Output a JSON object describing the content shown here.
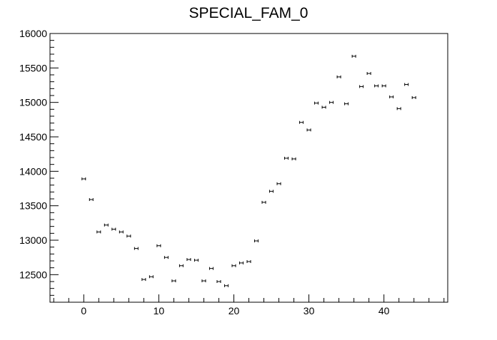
{
  "chart_data": {
    "type": "scatter",
    "title": "SPECIAL_FAM_0",
    "xlabel": "",
    "ylabel": "",
    "xlim": [
      -4.5,
      48.5
    ],
    "ylim": [
      12100,
      16000
    ],
    "x_ticks": [
      "0",
      "10",
      "20",
      "30",
      "40"
    ],
    "y_ticks": [
      "12500",
      "13000",
      "13500",
      "14000",
      "14500",
      "15000",
      "15500",
      "16000"
    ],
    "grid": false,
    "legend": "none",
    "marker_color": "#000000",
    "series": [
      {
        "x": [
          0,
          1,
          2,
          3,
          4,
          5,
          6,
          7,
          8,
          9,
          10,
          11,
          12,
          13,
          14,
          15,
          16,
          17,
          18,
          19,
          20,
          21,
          22,
          23,
          24,
          25,
          26,
          27,
          28,
          29,
          30,
          31,
          32,
          33,
          34,
          35,
          36,
          37,
          38,
          39,
          40,
          41,
          42,
          43,
          44
        ],
        "y": [
          13890,
          13590,
          13120,
          13220,
          13160,
          13120,
          13060,
          12880,
          12430,
          12470,
          12920,
          12750,
          12410,
          12630,
          12720,
          12710,
          12410,
          12590,
          12400,
          12340,
          12630,
          12670,
          12690,
          12990,
          13550,
          13710,
          13820,
          14190,
          14180,
          14710,
          14600,
          14990,
          14930,
          15000,
          15370,
          14980,
          15670,
          15230,
          15420,
          15240,
          15240,
          15080,
          14910,
          15260,
          15070
        ]
      }
    ]
  }
}
